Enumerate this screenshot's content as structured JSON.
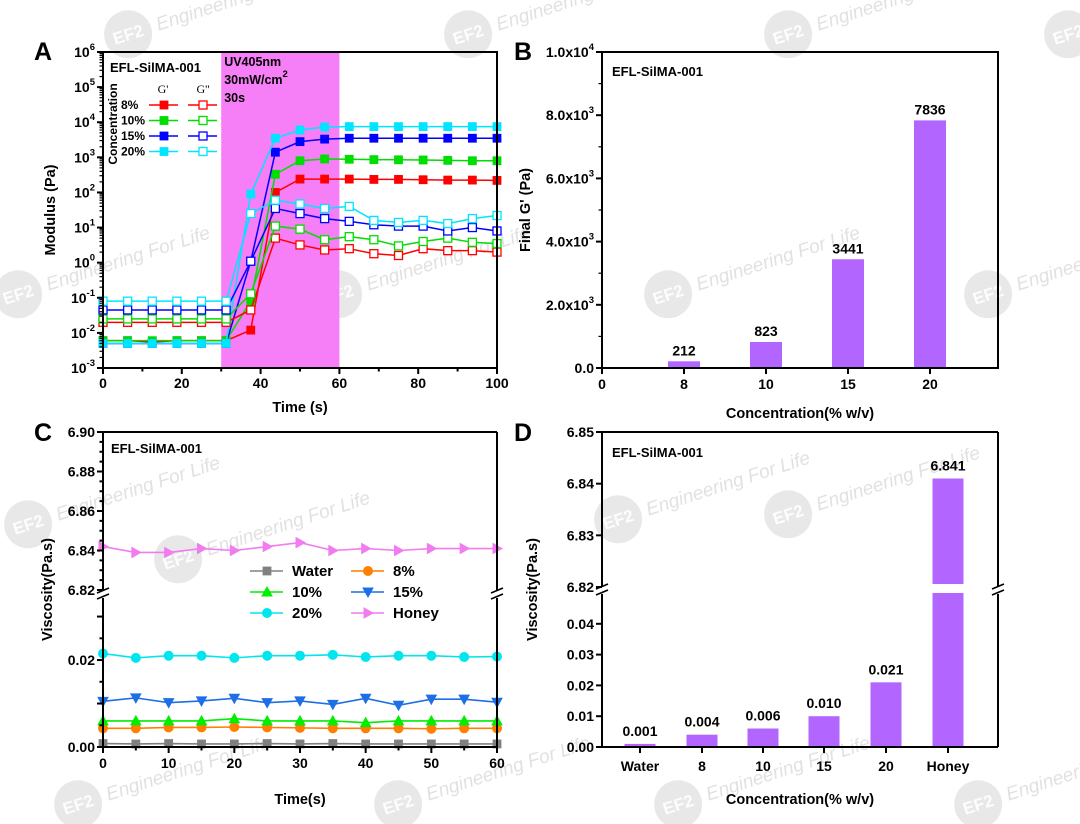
{
  "watermark": {
    "logo": "EF2",
    "text": "Engineering For Life"
  },
  "chart_data": [
    {
      "panel": "A",
      "type": "line",
      "title": "EFL-SilMA-001",
      "xlabel": "Time (s)",
      "ylabel": "Modulus (Pa)",
      "xlim": [
        0,
        100
      ],
      "ylim": [
        0.001,
        1000000
      ],
      "yscale": "log",
      "xticks": [
        "0",
        "20",
        "40",
        "60",
        "80",
        "100"
      ],
      "xtick_values": [
        0,
        20,
        40,
        60,
        80,
        100
      ],
      "yticks": [
        {
          "base": "10",
          "exp": "-3"
        },
        {
          "base": "10",
          "exp": "-2"
        },
        {
          "base": "10",
          "exp": "-1"
        },
        {
          "base": "10",
          "exp": "0"
        },
        {
          "base": "10",
          "exp": "1"
        },
        {
          "base": "10",
          "exp": "2"
        },
        {
          "base": "10",
          "exp": "3"
        },
        {
          "base": "10",
          "exp": "4"
        },
        {
          "base": "10",
          "exp": "5"
        },
        {
          "base": "10",
          "exp": "6"
        }
      ],
      "uv_region": {
        "x": [
          30,
          60
        ],
        "color": "#f67ef6",
        "line1": "UV405nm",
        "line2": "30mW/cm",
        "line2_sup": "2",
        "line3": "30s"
      },
      "legend": {
        "title": "Concentration",
        "col_headers": [
          "G'",
          "G''"
        ],
        "rows": [
          "8%",
          "10%",
          "15%",
          "20%"
        ],
        "placement": "top-left"
      },
      "x": [
        0,
        6.25,
        12.5,
        18.75,
        25,
        31.25,
        37.5,
        43.75,
        50,
        56.25,
        62.5,
        68.75,
        75,
        81.25,
        87.5,
        93.75,
        100
      ],
      "series": [
        {
          "name": "G' 8%",
          "color": "#ff0000",
          "filled": true,
          "values": [
            0.006,
            0.006,
            0.0055,
            0.006,
            0.006,
            0.006,
            0.012,
            100,
            240,
            240,
            240,
            235,
            235,
            230,
            225,
            225,
            220
          ]
        },
        {
          "name": "G' 10%",
          "color": "#00dd00",
          "filled": true,
          "values": [
            0.006,
            0.006,
            0.006,
            0.006,
            0.006,
            0.006,
            0.08,
            330,
            800,
            900,
            880,
            860,
            850,
            840,
            820,
            800,
            800
          ]
        },
        {
          "name": "G' 15%",
          "color": "#0000ff",
          "filled": true,
          "values": [
            0.005,
            0.005,
            0.005,
            0.005,
            0.005,
            0.005,
            1.1,
            1400,
            2800,
            3300,
            3500,
            3500,
            3500,
            3500,
            3500,
            3500,
            3500
          ]
        },
        {
          "name": "G' 20%",
          "color": "#00e5ff",
          "filled": true,
          "values": [
            0.005,
            0.005,
            0.005,
            0.005,
            0.005,
            0.005,
            90,
            3500,
            6000,
            7300,
            7500,
            7500,
            7500,
            7500,
            7500,
            7500,
            7500
          ]
        },
        {
          "name": "G'' 8%",
          "color": "#ff0000",
          "filled": false,
          "values": [
            0.02,
            0.02,
            0.02,
            0.02,
            0.02,
            0.02,
            0.045,
            5,
            3.2,
            2.3,
            2.5,
            1.8,
            1.6,
            2.5,
            2.2,
            2.2,
            2
          ]
        },
        {
          "name": "G'' 10%",
          "color": "#00dd00",
          "filled": false,
          "values": [
            0.025,
            0.025,
            0.025,
            0.025,
            0.025,
            0.025,
            0.13,
            11,
            9,
            4.5,
            5.5,
            4.5,
            3,
            4,
            5,
            3.8,
            3.5
          ]
        },
        {
          "name": "G'' 15%",
          "color": "#0000ff",
          "filled": false,
          "values": [
            0.045,
            0.045,
            0.045,
            0.045,
            0.045,
            0.045,
            1.1,
            35,
            25,
            18,
            15,
            12,
            11,
            11,
            8,
            10,
            8
          ]
        },
        {
          "name": "G'' 20%",
          "color": "#00e5ff",
          "filled": false,
          "values": [
            0.08,
            0.08,
            0.08,
            0.08,
            0.08,
            0.08,
            25,
            60,
            47,
            35,
            40,
            16,
            14,
            16,
            13,
            18,
            22
          ]
        }
      ]
    },
    {
      "panel": "B",
      "type": "bar",
      "title": "EFL-SilMA-001",
      "xlabel": "Concentration(% w/v)",
      "ylabel": "Final G' (Pa)",
      "ylim": [
        0,
        10000
      ],
      "xticks": [
        "0",
        "8",
        "10",
        "15",
        "20"
      ],
      "yticks": [
        {
          "base": "0.0",
          "exp": ""
        },
        {
          "base": "2.0x10",
          "exp": "3"
        },
        {
          "base": "4.0x10",
          "exp": "3"
        },
        {
          "base": "6.0x10",
          "exp": "3"
        },
        {
          "base": "8.0x10",
          "exp": "3"
        },
        {
          "base": "1.0x10",
          "exp": "4"
        }
      ],
      "ytick_values": [
        0,
        2000,
        4000,
        6000,
        8000,
        10000
      ],
      "categories": [
        "8",
        "10",
        "15",
        "20"
      ],
      "values": [
        212,
        823,
        3441,
        7836
      ],
      "data_labels": [
        "212",
        "823",
        "3441",
        "7836"
      ],
      "color": "#b266ff"
    },
    {
      "panel": "C",
      "type": "line",
      "title": "EFL-SilMA-001",
      "xlabel": "Time(s)",
      "ylabel": "Viscosity(Pa.s)",
      "xlim": [
        0,
        60
      ],
      "ylim_lower": [
        0,
        0.0345
      ],
      "ylim_upper": [
        6.82,
        6.9
      ],
      "axis_break": true,
      "xticks": [
        "0",
        "10",
        "20",
        "30",
        "40",
        "50",
        "60"
      ],
      "xtick_values": [
        0,
        10,
        20,
        30,
        40,
        50,
        60
      ],
      "yticks_lower": [
        "0.00",
        "0.02"
      ],
      "ytick_values_lower": [
        0,
        0.02
      ],
      "yticks_upper": [
        "6.82",
        "6.84",
        "6.86",
        "6.88",
        "6.90"
      ],
      "ytick_values_upper": [
        6.82,
        6.84,
        6.86,
        6.88,
        6.9
      ],
      "legend_placement": "center",
      "x": [
        0,
        5,
        10,
        15,
        20,
        25,
        30,
        35,
        40,
        45,
        50,
        55,
        60
      ],
      "series": [
        {
          "name": "Water",
          "color": "#808080",
          "marker": "square",
          "values": [
            0.0008,
            0.0007,
            0.0008,
            0.0007,
            0.0007,
            0.0008,
            0.0007,
            0.0008,
            0.0007,
            0.0007,
            0.0007,
            0.0007,
            0.0007
          ]
        },
        {
          "name": "8%",
          "color": "#ff7f00",
          "marker": "circle",
          "values": [
            0.0043,
            0.0043,
            0.0045,
            0.0045,
            0.0046,
            0.0045,
            0.0044,
            0.0043,
            0.0043,
            0.0043,
            0.0042,
            0.0043,
            0.0043
          ]
        },
        {
          "name": "10%",
          "color": "#00ee00",
          "marker": "triangle-up",
          "values": [
            0.006,
            0.006,
            0.006,
            0.006,
            0.0065,
            0.006,
            0.006,
            0.006,
            0.0056,
            0.006,
            0.006,
            0.006,
            0.006
          ]
        },
        {
          "name": "15%",
          "color": "#1e6fe6",
          "marker": "triangle-down",
          "values": [
            0.0105,
            0.0113,
            0.0102,
            0.0106,
            0.0112,
            0.0102,
            0.0106,
            0.0098,
            0.0112,
            0.0096,
            0.011,
            0.011,
            0.0103
          ]
        },
        {
          "name": "20%",
          "color": "#00e5ee",
          "marker": "circle",
          "values": [
            0.0215,
            0.0205,
            0.021,
            0.021,
            0.0205,
            0.021,
            0.021,
            0.0212,
            0.0207,
            0.021,
            0.021,
            0.0207,
            0.0208
          ]
        },
        {
          "name": "Honey",
          "color": "#f07cf0",
          "marker": "triangle-right",
          "values": [
            6.842,
            6.839,
            6.839,
            6.841,
            6.84,
            6.842,
            6.844,
            6.84,
            6.841,
            6.84,
            6.841,
            6.841,
            6.841
          ]
        }
      ]
    },
    {
      "panel": "D",
      "type": "bar",
      "title": "EFL-SilMA-001",
      "xlabel": "Concentration(% w/v)",
      "ylabel": "Viscosity(Pa.s)",
      "ylim_lower": [
        0,
        0.05
      ],
      "ylim_upper": [
        6.82,
        6.85
      ],
      "axis_break": true,
      "yticks_lower": [
        "0.00",
        "0.01",
        "0.02",
        "0.03",
        "0.04"
      ],
      "ytick_values_lower": [
        0,
        0.01,
        0.02,
        0.03,
        0.04
      ],
      "yticks_upper": [
        "6.82",
        "6.83",
        "6.84",
        "6.85"
      ],
      "ytick_values_upper": [
        6.82,
        6.83,
        6.84,
        6.85
      ],
      "categories": [
        "Water",
        "8",
        "10",
        "15",
        "20",
        "Honey"
      ],
      "values": [
        0.001,
        0.004,
        0.006,
        0.01,
        0.021,
        6.841
      ],
      "data_labels": [
        "0.001",
        "0.004",
        "0.006",
        "0.010",
        "0.021",
        "6.841"
      ],
      "color": "#b266ff"
    }
  ]
}
